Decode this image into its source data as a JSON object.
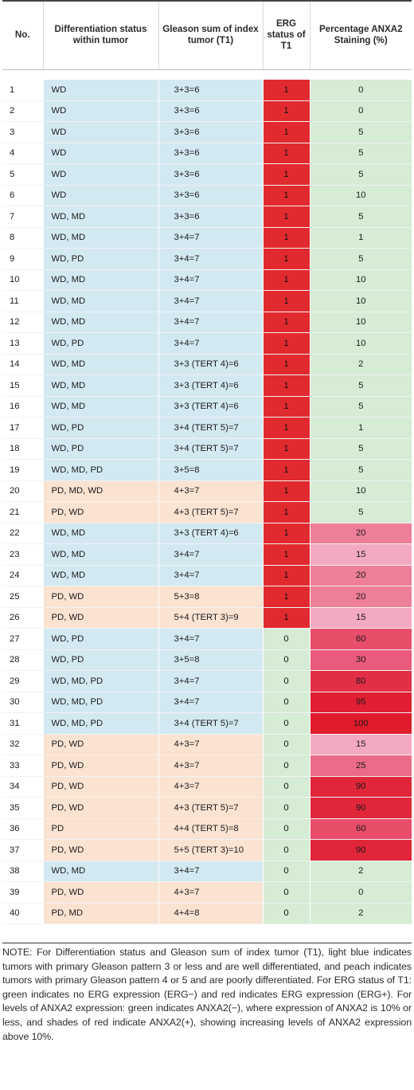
{
  "table": {
    "headers": {
      "no": "No.",
      "diff": "Differentiation status within tumor",
      "gleason": "Gleason sum of index tumor (T1)",
      "erg": "ERG status of T1",
      "pct": "Percentage ANXA2 Staining (%)"
    },
    "colors": {
      "light_blue": "#d3e9f2",
      "peach": "#fbe3d1",
      "erg_positive_red": "#e12a2f",
      "erg_negative_green": "#d6ecd5",
      "anxa2_negative_green": "#d6ecd5",
      "anxa2_positive_shades": [
        "#f4a9c3",
        "#ee7f98",
        "#e84d6a",
        "#e22f46",
        "#e01b2c"
      ]
    },
    "rows": [
      {
        "no": "1",
        "diff": "WD",
        "gleason": "3+3=6",
        "erg": "1",
        "pct": "0",
        "shade": "lb",
        "pct_color": "#d6ecd5"
      },
      {
        "no": "2",
        "diff": "WD",
        "gleason": "3+3=6",
        "erg": "1",
        "pct": "0",
        "shade": "lb",
        "pct_color": "#d6ecd5"
      },
      {
        "no": "3",
        "diff": "WD",
        "gleason": "3+3=6",
        "erg": "1",
        "pct": "5",
        "shade": "lb",
        "pct_color": "#d6ecd5"
      },
      {
        "no": "4",
        "diff": "WD",
        "gleason": "3+3=6",
        "erg": "1",
        "pct": "5",
        "shade": "lb",
        "pct_color": "#d6ecd5"
      },
      {
        "no": "5",
        "diff": "WD",
        "gleason": "3+3=6",
        "erg": "1",
        "pct": "5",
        "shade": "lb",
        "pct_color": "#d6ecd5"
      },
      {
        "no": "6",
        "diff": "WD",
        "gleason": "3+3=6",
        "erg": "1",
        "pct": "10",
        "shade": "lb",
        "pct_color": "#d6ecd5"
      },
      {
        "no": "7",
        "diff": "WD, MD",
        "gleason": "3+3=6",
        "erg": "1",
        "pct": "5",
        "shade": "lb",
        "pct_color": "#d6ecd5"
      },
      {
        "no": "8",
        "diff": "WD, MD",
        "gleason": "3+4=7",
        "erg": "1",
        "pct": "1",
        "shade": "lb",
        "pct_color": "#d6ecd5"
      },
      {
        "no": "9",
        "diff": "WD, PD",
        "gleason": "3+4=7",
        "erg": "1",
        "pct": "5",
        "shade": "lb",
        "pct_color": "#d6ecd5"
      },
      {
        "no": "10",
        "diff": "WD, MD",
        "gleason": "3+4=7",
        "erg": "1",
        "pct": "10",
        "shade": "lb",
        "pct_color": "#d6ecd5"
      },
      {
        "no": "11",
        "diff": "WD, MD",
        "gleason": "3+4=7",
        "erg": "1",
        "pct": "10",
        "shade": "lb",
        "pct_color": "#d6ecd5"
      },
      {
        "no": "12",
        "diff": "WD, MD",
        "gleason": "3+4=7",
        "erg": "1",
        "pct": "10",
        "shade": "lb",
        "pct_color": "#d6ecd5"
      },
      {
        "no": "13",
        "diff": "WD, PD",
        "gleason": "3+4=7",
        "erg": "1",
        "pct": "10",
        "shade": "lb",
        "pct_color": "#d6ecd5"
      },
      {
        "no": "14",
        "diff": "WD, MD",
        "gleason": "3+3 (TERT 4)=6",
        "erg": "1",
        "pct": "2",
        "shade": "lb",
        "pct_color": "#d6ecd5"
      },
      {
        "no": "15",
        "diff": "WD, MD",
        "gleason": "3+3 (TERT 4)=6",
        "erg": "1",
        "pct": "5",
        "shade": "lb",
        "pct_color": "#d6ecd5"
      },
      {
        "no": "16",
        "diff": "WD, MD",
        "gleason": "3+3 (TERT 4)=6",
        "erg": "1",
        "pct": "5",
        "shade": "lb",
        "pct_color": "#d6ecd5"
      },
      {
        "no": "17",
        "diff": "WD, PD",
        "gleason": "3+4 (TERT 5)=7",
        "erg": "1",
        "pct": "1",
        "shade": "lb",
        "pct_color": "#d6ecd5"
      },
      {
        "no": "18",
        "diff": "WD, PD",
        "gleason": "3+4 (TERT 5)=7",
        "erg": "1",
        "pct": "5",
        "shade": "lb",
        "pct_color": "#d6ecd5"
      },
      {
        "no": "19",
        "diff": "WD, MD, PD",
        "gleason": "3+5=8",
        "erg": "1",
        "pct": "5",
        "shade": "lb",
        "pct_color": "#d6ecd5"
      },
      {
        "no": "20",
        "diff": "PD, MD, WD",
        "gleason": "4+3=7",
        "erg": "1",
        "pct": "10",
        "shade": "pe",
        "pct_color": "#d6ecd5"
      },
      {
        "no": "21",
        "diff": "PD, WD",
        "gleason": "4+3 (TERT 5)=7",
        "erg": "1",
        "pct": "5",
        "shade": "pe",
        "pct_color": "#d6ecd5"
      },
      {
        "no": "22",
        "diff": "WD, MD",
        "gleason": "3+3 (TERT 4)=6",
        "erg": "1",
        "pct": "20",
        "shade": "lb",
        "pct_color": "#ee7f98"
      },
      {
        "no": "23",
        "diff": "WD, MD",
        "gleason": "3+4=7",
        "erg": "1",
        "pct": "15",
        "shade": "lb",
        "pct_color": "#f4a9c3"
      },
      {
        "no": "24",
        "diff": "WD, MD",
        "gleason": "3+4=7",
        "erg": "1",
        "pct": "20",
        "shade": "lb",
        "pct_color": "#ee7f98"
      },
      {
        "no": "25",
        "diff": "PD, WD",
        "gleason": "5+3=8",
        "erg": "1",
        "pct": "20",
        "shade": "pe",
        "pct_color": "#ee7f98"
      },
      {
        "no": "26",
        "diff": "PD, WD",
        "gleason": "5+4 (TERT 3)=9",
        "erg": "1",
        "pct": "15",
        "shade": "pe",
        "pct_color": "#f4a9c3"
      },
      {
        "no": "27",
        "diff": "WD, PD",
        "gleason": "3+4=7",
        "erg": "0",
        "pct": "60",
        "shade": "lb",
        "pct_color": "#e84d6a"
      },
      {
        "no": "28",
        "diff": "WD, PD",
        "gleason": "3+5=8",
        "erg": "0",
        "pct": "30",
        "shade": "lb",
        "pct_color": "#ea5a7c"
      },
      {
        "no": "29",
        "diff": "WD, MD, PD",
        "gleason": "3+4=7",
        "erg": "0",
        "pct": "80",
        "shade": "lb",
        "pct_color": "#e22f46"
      },
      {
        "no": "30",
        "diff": "WD, MD, PD",
        "gleason": "3+4=7",
        "erg": "0",
        "pct": "95",
        "shade": "lb",
        "pct_color": "#e01f33"
      },
      {
        "no": "31",
        "diff": "WD, MD, PD",
        "gleason": "3+4 (TERT 5)=7",
        "erg": "0",
        "pct": "100",
        "shade": "lb",
        "pct_color": "#e01b2c"
      },
      {
        "no": "32",
        "diff": "PD, WD",
        "gleason": "4+3=7",
        "erg": "0",
        "pct": "15",
        "shade": "pe",
        "pct_color": "#f4a9c3"
      },
      {
        "no": "33",
        "diff": "PD, WD",
        "gleason": "4+3=7",
        "erg": "0",
        "pct": "25",
        "shade": "pe",
        "pct_color": "#ec6b88"
      },
      {
        "no": "34",
        "diff": "PD, WD",
        "gleason": "4+3=7",
        "erg": "0",
        "pct": "90",
        "shade": "pe",
        "pct_color": "#e1263a"
      },
      {
        "no": "35",
        "diff": "PD, WD",
        "gleason": "4+3 (TERT 5)=7",
        "erg": "0",
        "pct": "90",
        "shade": "pe",
        "pct_color": "#e1263a"
      },
      {
        "no": "36",
        "diff": "PD",
        "gleason": "4+4 (TERT 5)=8",
        "erg": "0",
        "pct": "60",
        "shade": "pe",
        "pct_color": "#e84d6a"
      },
      {
        "no": "37",
        "diff": "PD, WD",
        "gleason": "5+5 (TERT 3)=10",
        "erg": "0",
        "pct": "90",
        "shade": "pe",
        "pct_color": "#e1263a"
      },
      {
        "no": "38",
        "diff": "WD, MD",
        "gleason": "3+4=7",
        "erg": "0",
        "pct": "2",
        "shade": "lb",
        "pct_color": "#d6ecd5"
      },
      {
        "no": "39",
        "diff": "PD, WD",
        "gleason": "4+3=7",
        "erg": "0",
        "pct": "0",
        "shade": "pe",
        "pct_color": "#d6ecd5"
      },
      {
        "no": "40",
        "diff": "PD, MD",
        "gleason": "4+4=8",
        "erg": "0",
        "pct": "2",
        "shade": "pe",
        "pct_color": "#d6ecd5"
      }
    ]
  },
  "note": "NOTE: For Differentiation status and Gleason sum of index tumor (T1), light blue indicates tumors with primary Gleason pattern 3 or less and are well differentiated, and peach indicates tumors with primary Gleason pattern 4 or 5 and are poorly differentiated. For ERG status of T1: green indicates no ERG expression (ERG−) and red indicates ERG expression (ERG+). For levels of ANXA2 expression: green indicates ANXA2(−), where expression of ANXA2 is 10% or less, and shades of red indicate ANXA2(+), showing increasing levels of ANXA2 expression above 10%."
}
